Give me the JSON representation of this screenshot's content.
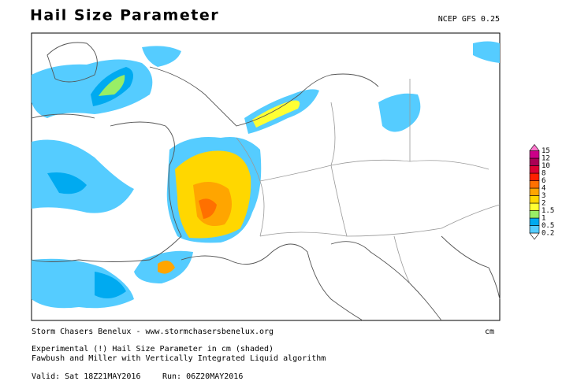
{
  "header": {
    "title": "Hail Size Parameter",
    "model": "NCEP GFS 0.25"
  },
  "legend": {
    "levels": [
      0.2,
      0.5,
      1,
      1.5,
      2,
      3,
      4,
      6,
      8,
      10,
      12,
      15
    ],
    "colors": [
      "#ffffff",
      "#55ccff",
      "#00aaf0",
      "#99ee66",
      "#ffff33",
      "#ffd700",
      "#ffa500",
      "#ff7000",
      "#ff2000",
      "#dd0033",
      "#aa0055",
      "#cc0088",
      "#ff77cc"
    ],
    "unit": "cm"
  },
  "footer": {
    "credit": "Storm Chasers Benelux - www.stormchasersbenelux.org",
    "description": [
      "Experimental (!) Hail Size Parameter in cm (shaded)",
      "Fawbush and Miller with Vertically Integrated Liquid algorithm"
    ],
    "valid": "Valid: Sat 18Z21MAY2016",
    "run": "Run: 06Z20MAY2016"
  }
}
